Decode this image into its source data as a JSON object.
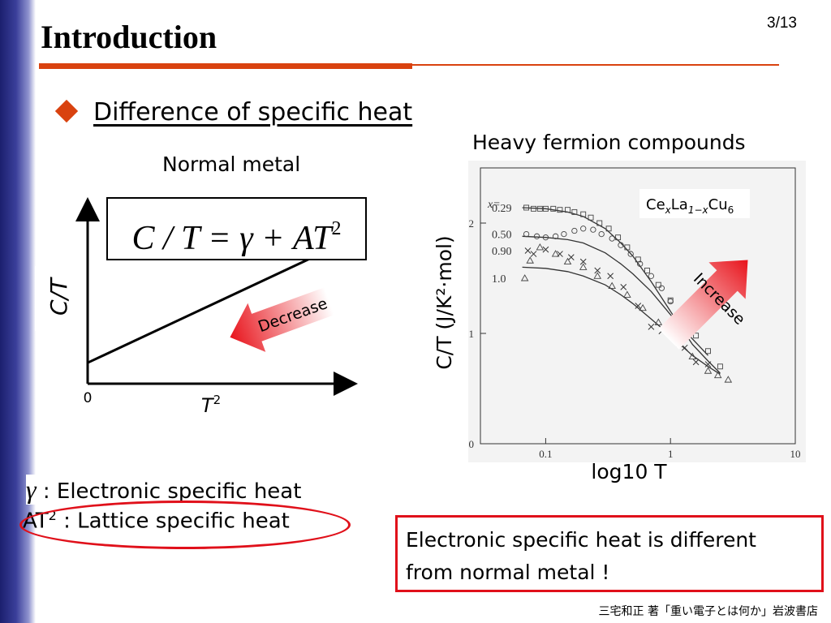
{
  "slide": {
    "number": "3/13",
    "title": "Introduction",
    "section_heading": "Difference of specific heat",
    "reference": "三宅和正 著「重い電子とは何か」岩波書店"
  },
  "normal_metal": {
    "label": "Normal metal",
    "formula": "C / T = γ + AT",
    "formula_exponent": "2",
    "arrow_label": "Decrease"
  },
  "heavy_fermion": {
    "label": "Heavy fermion compounds",
    "arrow_label": "Increase",
    "compound": {
      "ce": "Ce",
      "x": "x",
      "la": "La",
      "sub": "1−x",
      "cu": "Cu",
      "cu_sub": "6"
    },
    "x_prefix": "x="
  },
  "legend_notes": {
    "gamma_symbol": "γ",
    "gamma_text": " : Electronic specific heat",
    "at2_base": "AT",
    "at2_exp": "2",
    "at2_text": " : Lattice specific heat"
  },
  "conclusion": {
    "line1": "Electronic specific heat is different",
    "line2": "from normal metal !"
  },
  "colors": {
    "accent": "#d9420f",
    "highlight": "#e0101a",
    "sidebar": "#2a2e86"
  },
  "chart_data": [
    {
      "type": "line",
      "title": "",
      "xlabel": "T",
      "xlabel_exponent": "2",
      "ylabel": "C/T",
      "x_tick_labels": [
        "0"
      ],
      "series": [
        {
          "x": [
            0,
            1
          ],
          "y": [
            0.12,
            0.75
          ]
        }
      ],
      "xlim": [
        0,
        1.1
      ],
      "ylim": [
        0,
        1
      ],
      "grid": false
    },
    {
      "type": "scatter",
      "title": "",
      "xlabel": "log10 T",
      "ylabel": "C/T (J/K²·mol)",
      "xscale": "log",
      "xlim": [
        0.03,
        10
      ],
      "ylim": [
        0,
        2.5
      ],
      "x_ticks": [
        0.1,
        1,
        10
      ],
      "x_tick_labels": [
        "0.1",
        "1",
        "10"
      ],
      "y_ticks": [
        0,
        1,
        2
      ],
      "y_tick_labels": [
        "0",
        "1",
        "2"
      ],
      "grid": false,
      "series": [
        {
          "name": "0.29",
          "marker": "square",
          "x": [
            0.07,
            0.08,
            0.09,
            0.1,
            0.115,
            0.13,
            0.15,
            0.17,
            0.2,
            0.23,
            0.27,
            0.32,
            0.38,
            0.45,
            0.55,
            0.65,
            0.8,
            1.0,
            1.25,
            1.6,
            2.0,
            2.5
          ],
          "y": [
            2.14,
            2.13,
            2.13,
            2.13,
            2.13,
            2.12,
            2.12,
            2.1,
            2.08,
            2.05,
            2.0,
            1.95,
            1.87,
            1.78,
            1.67,
            1.57,
            1.44,
            1.3,
            1.14,
            0.98,
            0.84,
            0.7
          ]
        },
        {
          "name": "0.50",
          "marker": "circle",
          "x": [
            0.07,
            0.085,
            0.1,
            0.12,
            0.14,
            0.17,
            0.2,
            0.24,
            0.28,
            0.34,
            0.4,
            0.48,
            0.57,
            0.7,
            0.85,
            1.0,
            1.2,
            1.45
          ],
          "y": [
            1.9,
            1.88,
            1.87,
            1.88,
            1.9,
            1.93,
            1.95,
            1.94,
            1.9,
            1.86,
            1.8,
            1.72,
            1.63,
            1.52,
            1.41,
            1.29,
            1.17,
            1.07
          ]
        },
        {
          "name": "0.90",
          "marker": "cross",
          "x": [
            0.072,
            0.08,
            0.1,
            0.13,
            0.16,
            0.2,
            0.26,
            0.33,
            0.42,
            0.55,
            0.7,
            0.85,
            1.05,
            1.3,
            1.6,
            2.0
          ],
          "y": [
            1.75,
            1.72,
            1.76,
            1.72,
            1.69,
            1.65,
            1.57,
            1.52,
            1.42,
            1.25,
            1.06,
            1.02,
            0.97,
            0.87,
            0.74,
            0.72
          ]
        },
        {
          "name": "1.0",
          "marker": "triangle",
          "x": [
            0.068,
            0.075,
            0.09,
            0.12,
            0.15,
            0.2,
            0.26,
            0.34,
            0.45,
            0.6,
            0.8,
            1.0,
            1.2,
            1.5,
            2.0,
            2.4,
            2.9
          ],
          "y": [
            1.5,
            1.66,
            1.78,
            1.72,
            1.65,
            1.6,
            1.52,
            1.43,
            1.35,
            1.23,
            1.1,
            1.0,
            0.9,
            0.79,
            0.66,
            0.62,
            0.58
          ]
        }
      ],
      "fit_curves": [
        {
          "name": "0.29",
          "x": [
            0.065,
            0.1,
            0.15,
            0.2,
            0.3,
            0.4,
            0.5,
            0.7,
            1.0,
            1.5,
            2.0,
            2.5
          ],
          "y": [
            2.14,
            2.13,
            2.1,
            2.06,
            1.95,
            1.82,
            1.7,
            1.47,
            1.2,
            0.9,
            0.75,
            0.64
          ]
        },
        {
          "name": "0.50",
          "x": [
            0.065,
            0.1,
            0.15,
            0.2,
            0.3,
            0.4,
            0.5,
            0.7,
            1.0,
            1.5,
            2.0
          ],
          "y": [
            1.88,
            1.87,
            1.85,
            1.82,
            1.73,
            1.63,
            1.54,
            1.38,
            1.17,
            0.95,
            0.8
          ]
        },
        {
          "name": "1.0",
          "x": [
            0.065,
            0.1,
            0.15,
            0.2,
            0.3,
            0.4,
            0.5,
            0.7,
            1.0,
            1.5,
            2.0,
            2.5
          ],
          "y": [
            1.6,
            1.59,
            1.56,
            1.52,
            1.44,
            1.35,
            1.27,
            1.13,
            0.98,
            0.8,
            0.7,
            0.63
          ]
        }
      ]
    }
  ]
}
